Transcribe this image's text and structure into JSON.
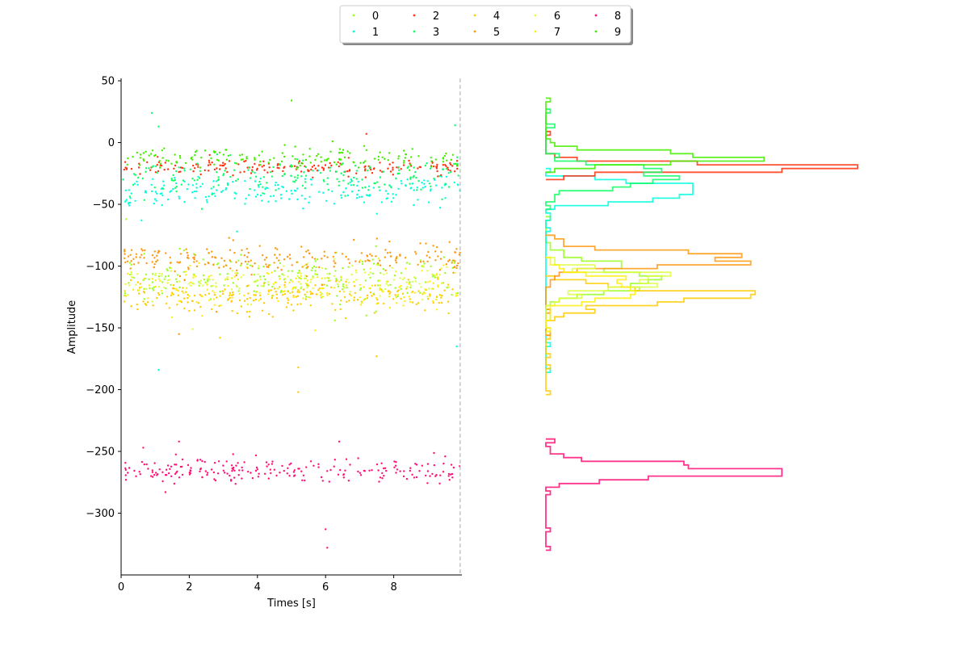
{
  "chart_data": {
    "type": "scatter",
    "xlabel": "Times [s]",
    "ylabel": "Amplitude",
    "xlim": [
      0,
      10
    ],
    "ylim": [
      -350,
      52
    ],
    "xticks": [
      0,
      2,
      4,
      6,
      8
    ],
    "yticks": [
      50,
      0,
      -50,
      -100,
      -150,
      -200,
      -250,
      -300
    ],
    "x_end_marker": 9.95,
    "legend": {
      "placement": "top-center",
      "columns": 5,
      "shadow": true
    },
    "grid": false,
    "marginal_histogram": {
      "placement": "right",
      "orientation": "horizontal",
      "type": "step"
    },
    "series": [
      {
        "name": "0",
        "color": "#99ff22",
        "center": -110,
        "spread": 9,
        "count": 200,
        "seed": 11,
        "outliers": [
          [
            0.15,
            -62
          ],
          [
            7.2,
            -140
          ],
          [
            8.9,
            -98
          ]
        ]
      },
      {
        "name": "1",
        "color": "#00ffdd",
        "center": -40,
        "spread": 6,
        "count": 200,
        "seed": 23,
        "outliers": [
          [
            1.1,
            -184
          ],
          [
            9.85,
            -165
          ],
          [
            0.6,
            -63
          ],
          [
            3.4,
            -72
          ]
        ]
      },
      {
        "name": "2",
        "color": "#ff3311",
        "center": -20,
        "spread": 3,
        "count": 180,
        "seed": 37,
        "outliers": [
          [
            7.2,
            7
          ],
          [
            2.6,
            -10
          ]
        ]
      },
      {
        "name": "3",
        "color": "#11ff66",
        "center": -28,
        "spread": 7,
        "count": 180,
        "seed": 41,
        "outliers": [
          [
            0.9,
            24
          ],
          [
            1.1,
            13
          ],
          [
            9.8,
            14
          ]
        ]
      },
      {
        "name": "4",
        "color": "#ffcc00",
        "center": -125,
        "spread": 6,
        "count": 220,
        "seed": 53,
        "outliers": [
          [
            5.2,
            -202
          ],
          [
            5.2,
            -182
          ],
          [
            2.9,
            -158
          ],
          [
            7.5,
            -173
          ]
        ]
      },
      {
        "name": "5",
        "color": "#ff9911",
        "center": -94,
        "spread": 6,
        "count": 220,
        "seed": 67,
        "outliers": [
          [
            2.8,
            -137
          ],
          [
            1.7,
            -155
          ]
        ]
      },
      {
        "name": "6",
        "color": "#ddff44",
        "center": -112,
        "spread": 8,
        "count": 150,
        "seed": 71,
        "outliers": [
          [
            2.1,
            -151
          ]
        ]
      },
      {
        "name": "7",
        "color": "#ffee11",
        "center": -118,
        "spread": 9,
        "count": 150,
        "seed": 83,
        "outliers": [
          [
            5.7,
            -152
          ]
        ]
      },
      {
        "name": "8",
        "color": "#ff1177",
        "center": -266,
        "spread": 5,
        "count": 220,
        "seed": 97,
        "outliers": [
          [
            6.0,
            -313
          ],
          [
            6.05,
            -328
          ],
          [
            1.3,
            -283
          ],
          [
            1.7,
            -242
          ],
          [
            6.4,
            -242
          ],
          [
            0.65,
            -247
          ]
        ]
      },
      {
        "name": "9",
        "color": "#44ee00",
        "center": -12,
        "spread": 4,
        "count": 160,
        "seed": 101,
        "outliers": [
          [
            5.0,
            34
          ],
          [
            4.8,
            -2
          ]
        ]
      }
    ]
  }
}
